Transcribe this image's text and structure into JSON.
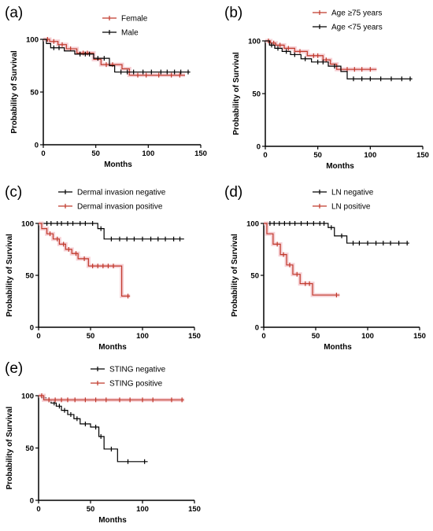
{
  "chart_data": [
    {
      "type": "line",
      "panel_label": "(a)",
      "xlabel": "Months",
      "ylabel": "Probability of Survival",
      "xlim": [
        0,
        150
      ],
      "ylim": [
        0,
        100
      ],
      "xticks": [
        "0",
        "50",
        "100",
        "150"
      ],
      "yticks": [
        "0",
        "50",
        "100"
      ],
      "grid": false,
      "legend_position": "top-center",
      "series": [
        {
          "name": "Female",
          "color": "#c0392b",
          "steps": [
            [
              0,
              100
            ],
            [
              6,
              98
            ],
            [
              14,
              95
            ],
            [
              22,
              91
            ],
            [
              32,
              87
            ],
            [
              48,
              81
            ],
            [
              55,
              76
            ],
            [
              75,
              72
            ],
            [
              82,
              66
            ],
            [
              135,
              66
            ]
          ],
          "censored": [
            [
              4,
              100
            ],
            [
              10,
              98
            ],
            [
              18,
              95
            ],
            [
              26,
              91
            ],
            [
              38,
              87
            ],
            [
              42,
              87
            ],
            [
              60,
              76
            ],
            [
              66,
              76
            ],
            [
              90,
              66
            ],
            [
              98,
              66
            ],
            [
              110,
              66
            ],
            [
              122,
              66
            ],
            [
              130,
              66
            ]
          ]
        },
        {
          "name": "Male",
          "color": "#000000",
          "steps": [
            [
              0,
              100
            ],
            [
              3,
              96
            ],
            [
              7,
              92
            ],
            [
              20,
              89
            ],
            [
              30,
              86
            ],
            [
              48,
              82
            ],
            [
              63,
              75
            ],
            [
              68,
              69
            ],
            [
              140,
              69
            ]
          ],
          "censored": [
            [
              10,
              92
            ],
            [
              15,
              92
            ],
            [
              35,
              86
            ],
            [
              40,
              86
            ],
            [
              44,
              86
            ],
            [
              52,
              82
            ],
            [
              58,
              82
            ],
            [
              74,
              69
            ],
            [
              80,
              69
            ],
            [
              86,
              69
            ],
            [
              95,
              69
            ],
            [
              103,
              69
            ],
            [
              112,
              69
            ],
            [
              118,
              69
            ],
            [
              125,
              69
            ],
            [
              131,
              69
            ],
            [
              138,
              69
            ]
          ]
        }
      ]
    },
    {
      "type": "line",
      "panel_label": "(b)",
      "xlabel": "Months",
      "ylabel": "Probability of Survival",
      "xlim": [
        0,
        150
      ],
      "ylim": [
        0,
        100
      ],
      "xticks": [
        "0",
        "50",
        "100",
        "150"
      ],
      "yticks": [
        "0",
        "50",
        "100"
      ],
      "grid": false,
      "legend_position": "top-right",
      "series": [
        {
          "name": "Age ≥75 years",
          "color": "#c0392b",
          "steps": [
            [
              0,
              100
            ],
            [
              5,
              98
            ],
            [
              10,
              96
            ],
            [
              18,
              93
            ],
            [
              28,
              90
            ],
            [
              40,
              86
            ],
            [
              55,
              82
            ],
            [
              62,
              78
            ],
            [
              68,
              73
            ],
            [
              106,
              73
            ]
          ],
          "censored": [
            [
              3,
              100
            ],
            [
              8,
              98
            ],
            [
              14,
              96
            ],
            [
              22,
              93
            ],
            [
              33,
              90
            ],
            [
              46,
              86
            ],
            [
              50,
              86
            ],
            [
              58,
              82
            ],
            [
              72,
              73
            ],
            [
              78,
              73
            ],
            [
              85,
              73
            ],
            [
              92,
              73
            ],
            [
              100,
              73
            ]
          ]
        },
        {
          "name": "Age <75 years",
          "color": "#000000",
          "steps": [
            [
              0,
              100
            ],
            [
              4,
              96
            ],
            [
              9,
              93
            ],
            [
              16,
              90
            ],
            [
              24,
              87
            ],
            [
              34,
              83
            ],
            [
              44,
              80
            ],
            [
              60,
              76
            ],
            [
              72,
              71
            ],
            [
              78,
              64
            ],
            [
              140,
              64
            ]
          ],
          "censored": [
            [
              6,
              96
            ],
            [
              12,
              93
            ],
            [
              20,
              90
            ],
            [
              28,
              87
            ],
            [
              38,
              83
            ],
            [
              50,
              80
            ],
            [
              55,
              80
            ],
            [
              66,
              76
            ],
            [
              84,
              64
            ],
            [
              92,
              64
            ],
            [
              100,
              64
            ],
            [
              110,
              64
            ],
            [
              120,
              64
            ],
            [
              130,
              64
            ],
            [
              138,
              64
            ]
          ]
        }
      ]
    },
    {
      "type": "line",
      "panel_label": "(c)",
      "xlabel": "Months",
      "ylabel": "Probability of Survival",
      "xlim": [
        0,
        150
      ],
      "ylim": [
        0,
        100
      ],
      "xticks": [
        "0",
        "50",
        "100",
        "150"
      ],
      "yticks": [
        "0",
        "50",
        "100"
      ],
      "grid": false,
      "legend_position": "top-center",
      "series": [
        {
          "name": "Dermal invasion negative",
          "color": "#000000",
          "steps": [
            [
              0,
              100
            ],
            [
              57,
              95
            ],
            [
              63,
              85
            ],
            [
              140,
              85
            ]
          ],
          "censored": [
            [
              8,
              100
            ],
            [
              12,
              100
            ],
            [
              18,
              100
            ],
            [
              22,
              100
            ],
            [
              28,
              100
            ],
            [
              33,
              100
            ],
            [
              40,
              100
            ],
            [
              45,
              100
            ],
            [
              52,
              100
            ],
            [
              60,
              95
            ],
            [
              70,
              85
            ],
            [
              78,
              85
            ],
            [
              85,
              85
            ],
            [
              92,
              85
            ],
            [
              100,
              85
            ],
            [
              108,
              85
            ],
            [
              115,
              85
            ],
            [
              122,
              85
            ],
            [
              130,
              85
            ],
            [
              136,
              85
            ]
          ]
        },
        {
          "name": "Dermal invasion positive",
          "color": "#c0392b",
          "steps": [
            [
              0,
              100
            ],
            [
              3,
              95
            ],
            [
              8,
              90
            ],
            [
              14,
              85
            ],
            [
              20,
              80
            ],
            [
              26,
              75
            ],
            [
              32,
              71
            ],
            [
              38,
              66
            ],
            [
              48,
              59
            ],
            [
              80,
              30
            ],
            [
              88,
              30
            ]
          ],
          "censored": [
            [
              11,
              90
            ],
            [
              18,
              85
            ],
            [
              24,
              80
            ],
            [
              29,
              75
            ],
            [
              36,
              71
            ],
            [
              44,
              66
            ],
            [
              52,
              59
            ],
            [
              57,
              59
            ],
            [
              62,
              59
            ],
            [
              67,
              59
            ],
            [
              72,
              59
            ],
            [
              86,
              30
            ]
          ]
        }
      ]
    },
    {
      "type": "line",
      "panel_label": "(d)",
      "xlabel": "Months",
      "ylabel": "Probability of Survival",
      "xlim": [
        0,
        150
      ],
      "ylim": [
        0,
        100
      ],
      "xticks": [
        "0",
        "50",
        "100",
        "150"
      ],
      "yticks": [
        "0",
        "50",
        "100"
      ],
      "grid": false,
      "legend_position": "top-center",
      "series": [
        {
          "name": "LN negative",
          "color": "#000000",
          "steps": [
            [
              0,
              100
            ],
            [
              62,
              96
            ],
            [
              68,
              88
            ],
            [
              80,
              81
            ],
            [
              140,
              81
            ]
          ],
          "censored": [
            [
              6,
              100
            ],
            [
              10,
              100
            ],
            [
              15,
              100
            ],
            [
              20,
              100
            ],
            [
              25,
              100
            ],
            [
              30,
              100
            ],
            [
              36,
              100
            ],
            [
              42,
              100
            ],
            [
              48,
              100
            ],
            [
              54,
              100
            ],
            [
              58,
              100
            ],
            [
              65,
              96
            ],
            [
              75,
              88
            ],
            [
              86,
              81
            ],
            [
              92,
              81
            ],
            [
              100,
              81
            ],
            [
              108,
              81
            ],
            [
              115,
              81
            ],
            [
              122,
              81
            ],
            [
              130,
              81
            ],
            [
              138,
              81
            ]
          ]
        },
        {
          "name": "LN positive",
          "color": "#c0392b",
          "steps": [
            [
              0,
              100
            ],
            [
              3,
              90
            ],
            [
              9,
              80
            ],
            [
              16,
              70
            ],
            [
              22,
              60
            ],
            [
              28,
              51
            ],
            [
              35,
              42
            ],
            [
              47,
              31
            ],
            [
              73,
              31
            ]
          ],
          "censored": [
            [
              13,
              80
            ],
            [
              19,
              70
            ],
            [
              25,
              60
            ],
            [
              32,
              51
            ],
            [
              40,
              42
            ],
            [
              44,
              42
            ],
            [
              70,
              31
            ]
          ]
        }
      ]
    },
    {
      "type": "line",
      "panel_label": "(e)",
      "xlabel": "Months",
      "ylabel": "Probability of Survival",
      "xlim": [
        0,
        150
      ],
      "ylim": [
        0,
        100
      ],
      "xticks": [
        "0",
        "50",
        "100",
        "150"
      ],
      "yticks": [
        "0",
        "50",
        "100"
      ],
      "grid": false,
      "legend_position": "top-center",
      "series": [
        {
          "name": "STING negative",
          "color": "#000000",
          "steps": [
            [
              0,
              100
            ],
            [
              3,
              98
            ],
            [
              7,
              96
            ],
            [
              12,
              93
            ],
            [
              17,
              90
            ],
            [
              22,
              86
            ],
            [
              28,
              82
            ],
            [
              34,
              78
            ],
            [
              40,
              73
            ],
            [
              50,
              70
            ],
            [
              58,
              61
            ],
            [
              63,
              49
            ],
            [
              76,
              37
            ],
            [
              105,
              37
            ]
          ],
          "censored": [
            [
              5,
              98
            ],
            [
              10,
              96
            ],
            [
              15,
              93
            ],
            [
              20,
              90
            ],
            [
              25,
              86
            ],
            [
              31,
              82
            ],
            [
              37,
              78
            ],
            [
              45,
              73
            ],
            [
              55,
              70
            ],
            [
              60,
              61
            ],
            [
              70,
              49
            ],
            [
              86,
              37
            ],
            [
              102,
              37
            ]
          ]
        },
        {
          "name": "STING positive",
          "color": "#c0392b",
          "steps": [
            [
              0,
              100
            ],
            [
              5,
              96
            ],
            [
              140,
              96
            ]
          ],
          "censored": [
            [
              3,
              100
            ],
            [
              10,
              96
            ],
            [
              16,
              96
            ],
            [
              22,
              96
            ],
            [
              28,
              96
            ],
            [
              35,
              96
            ],
            [
              45,
              96
            ],
            [
              55,
              96
            ],
            [
              65,
              96
            ],
            [
              78,
              96
            ],
            [
              88,
              96
            ],
            [
              100,
              96
            ],
            [
              110,
              96
            ],
            [
              128,
              96
            ],
            [
              138,
              96
            ]
          ]
        }
      ]
    }
  ]
}
